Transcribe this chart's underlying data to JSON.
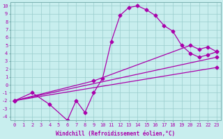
{
  "xlabel": "Windchill (Refroidissement éolien,°C)",
  "background_color": "#c8eeee",
  "line_color": "#aa00aa",
  "grid_color": "#99cccc",
  "curve_x": [
    0,
    2,
    4,
    6,
    7,
    8,
    9,
    10,
    11,
    12,
    13,
    14,
    15,
    16,
    17,
    18,
    19,
    20,
    21,
    22,
    23
  ],
  "curve_y": [
    -2,
    -1,
    -2.5,
    -4.5,
    -2.0,
    -3.5,
    -1.0,
    0.8,
    5.5,
    8.8,
    9.8,
    10.0,
    9.5,
    8.8,
    7.5,
    6.8,
    5.0,
    4.0,
    3.5,
    3.8,
    4.2
  ],
  "line2_x": [
    0,
    9,
    20,
    21,
    22,
    23
  ],
  "line2_y": [
    -2,
    0.5,
    5.0,
    4.5,
    4.8,
    4.2
  ],
  "line3_x": [
    0,
    23
  ],
  "line3_y": [
    -2,
    3.5
  ],
  "line4_x": [
    0,
    23
  ],
  "line4_y": [
    -2,
    2.2
  ],
  "xlim": [
    -0.5,
    23.5
  ],
  "ylim": [
    -4.5,
    10.5
  ],
  "xticks": [
    0,
    1,
    2,
    3,
    4,
    5,
    6,
    7,
    8,
    9,
    10,
    11,
    12,
    13,
    14,
    15,
    16,
    17,
    18,
    19,
    20,
    21,
    22,
    23
  ],
  "yticks": [
    10,
    9,
    8,
    7,
    6,
    5,
    4,
    3,
    2,
    1,
    0,
    -1,
    -2,
    -3,
    -4
  ],
  "marker": "D",
  "marker_size": 2.5,
  "linewidth": 0.9,
  "tick_fontsize": 5,
  "label_fontsize": 5.5
}
